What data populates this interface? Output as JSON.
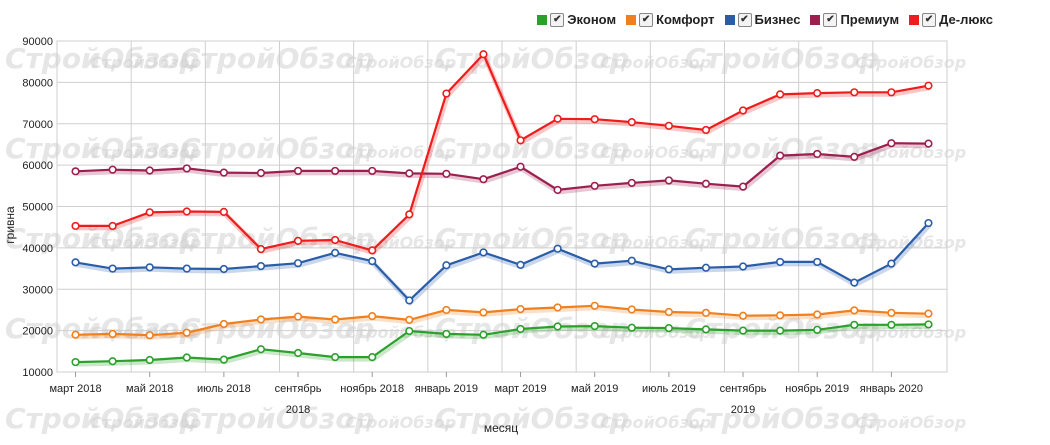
{
  "legend": [
    {
      "label": "Эконом",
      "color": "#2ca02c"
    },
    {
      "label": "Комфорт",
      "color": "#f07f1e"
    },
    {
      "label": "Бизнес",
      "color": "#2a5da8"
    },
    {
      "label": "Премиум",
      "color": "#9b1f4f"
    },
    {
      "label": "Де-люкс",
      "color": "#ee1c1c"
    }
  ],
  "legend_check": "✔",
  "watermark_text": "СтройОбзор",
  "chart_data": {
    "type": "line",
    "xlabel": "месяц",
    "ylabel": "гривна",
    "ylim": [
      10000,
      90000
    ],
    "yticks": [
      10000,
      20000,
      30000,
      40000,
      50000,
      60000,
      70000,
      80000,
      90000
    ],
    "grid": true,
    "legend_position": "top-right",
    "x": [
      "март 2018",
      "апрель 2018",
      "май 2018",
      "июнь 2018",
      "июль 2018",
      "август 2018",
      "сентябрь 2018",
      "октябрь 2018",
      "ноябрь 2018",
      "декабрь 2018",
      "январь 2019",
      "февраль 2019",
      "март 2019",
      "апрель 2019",
      "май 2019",
      "июнь 2019",
      "июль 2019",
      "август 2019",
      "сентябрь 2019",
      "октябрь 2019",
      "ноябрь 2019",
      "декабрь 2019",
      "январь 2020",
      "февраль 2020"
    ],
    "x_tick_labels": [
      {
        "index": 0,
        "label": "март 2018"
      },
      {
        "index": 2,
        "label": "май 2018"
      },
      {
        "index": 4,
        "label": "июль 2018"
      },
      {
        "index": 6,
        "label": "сентябрь"
      },
      {
        "index": 8,
        "label": "ноябрь 2018"
      },
      {
        "index": 10,
        "label": "январь 2019"
      },
      {
        "index": 12,
        "label": "март 2019"
      },
      {
        "index": 14,
        "label": "май 2019"
      },
      {
        "index": 16,
        "label": "июль 2019"
      },
      {
        "index": 18,
        "label": "сентябрь"
      },
      {
        "index": 20,
        "label": "ноябрь 2019"
      },
      {
        "index": 22,
        "label": "январь 2020"
      }
    ],
    "x_group_labels": [
      {
        "index": 6,
        "label": "2018"
      },
      {
        "index": 18,
        "label": "2019"
      }
    ],
    "series": [
      {
        "name": "Эконом",
        "color": "#2ca02c",
        "values": [
          12400,
          12600,
          12900,
          13500,
          13000,
          15500,
          14600,
          13600,
          13600,
          19900,
          19200,
          19000,
          20400,
          21000,
          21100,
          20700,
          20600,
          20300,
          20000,
          20000,
          20200,
          21400,
          21400,
          21500
        ]
      },
      {
        "name": "Комфорт",
        "color": "#f07f1e",
        "values": [
          19000,
          19200,
          18900,
          19500,
          21600,
          22700,
          23400,
          22700,
          23500,
          22600,
          25000,
          24400,
          25200,
          25600,
          26000,
          25100,
          24500,
          24300,
          23600,
          23700,
          23900,
          24900,
          24300,
          24100
        ]
      },
      {
        "name": "Бизнес",
        "color": "#2a5da8",
        "values": [
          36500,
          35000,
          35300,
          35000,
          34900,
          35600,
          36300,
          38800,
          36800,
          27300,
          35800,
          38900,
          35900,
          39800,
          36200,
          36900,
          34800,
          35200,
          35500,
          36600,
          36600,
          31600,
          36200,
          46000
        ]
      },
      {
        "name": "Премиум",
        "color": "#9b1f4f",
        "values": [
          58500,
          58900,
          58700,
          59200,
          58200,
          58100,
          58600,
          58600,
          58600,
          58000,
          57900,
          56600,
          59600,
          54000,
          55000,
          55700,
          56300,
          55500,
          54800,
          62300,
          62700,
          62000,
          65300,
          65200
        ]
      },
      {
        "name": "Де-люкс",
        "color": "#ee1c1c",
        "values": [
          45300,
          45300,
          48600,
          48800,
          48700,
          39700,
          41700,
          41900,
          39400,
          48100,
          77300,
          86800,
          66000,
          71200,
          71100,
          70400,
          69500,
          68500,
          73200,
          77100,
          77400,
          77600,
          77600,
          79200
        ]
      }
    ]
  }
}
